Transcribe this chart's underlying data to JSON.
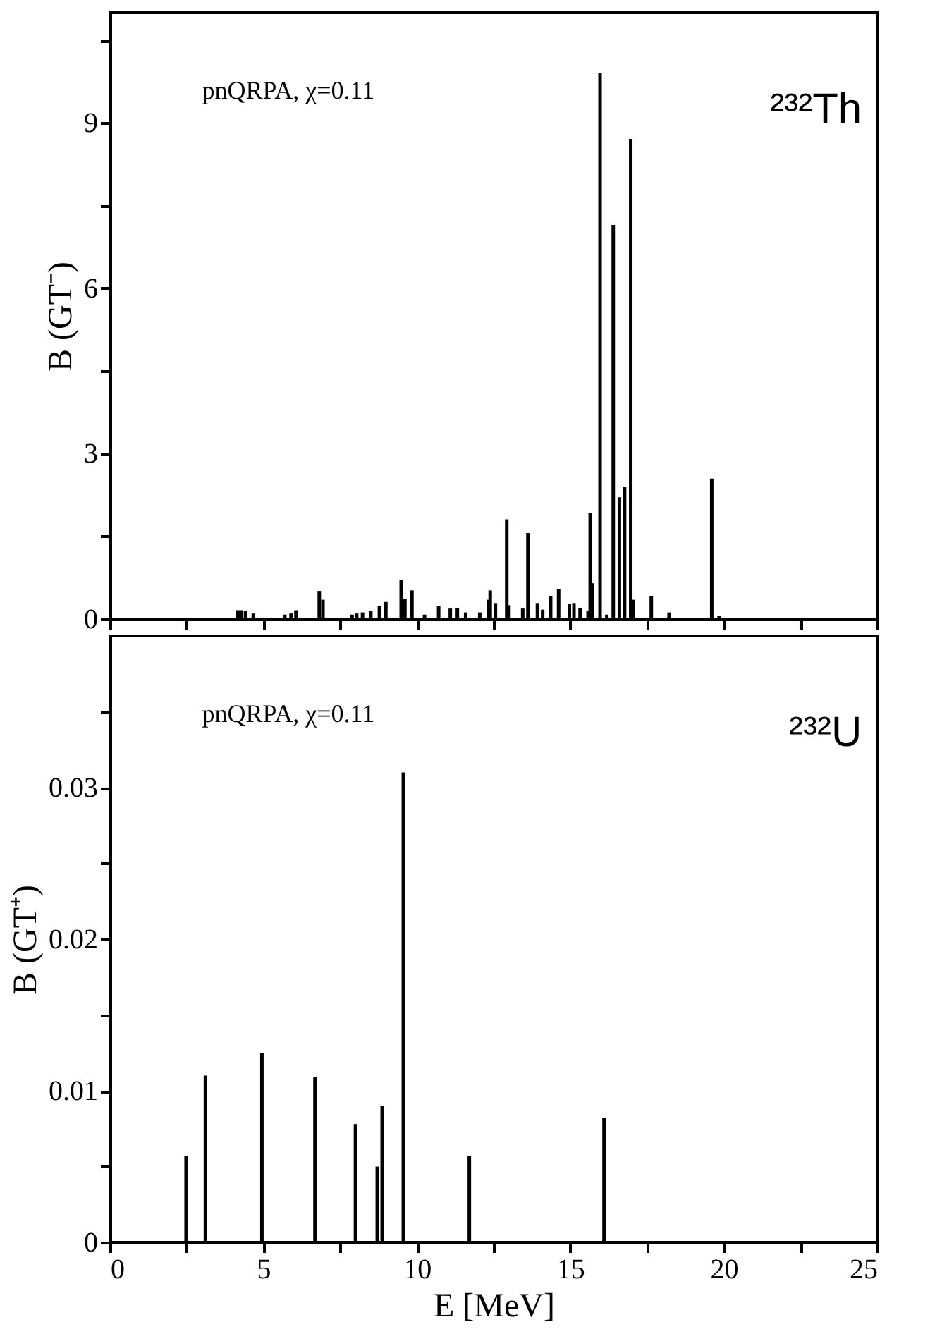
{
  "chart_data": [
    {
      "type": "bar",
      "ylabel": "B (GT⁻)",
      "annotations": [
        "pnQRPA, χ=0.11",
        "²³²Th"
      ],
      "tick_labels": "y",
      "xlim": [
        0,
        25
      ],
      "ylim": [
        0,
        11
      ],
      "xticks": [
        0,
        {
          "value": 2.5,
          "label": null
        },
        5,
        {
          "value": 7.5,
          "label": null
        },
        10,
        {
          "value": 12.5,
          "label": null
        },
        15,
        {
          "value": 17.5,
          "label": null
        },
        20,
        {
          "value": 22.5,
          "label": null
        },
        25
      ],
      "yticks": [
        0,
        {
          "value": 1.5,
          "label": null
        },
        3,
        {
          "value": 4.5,
          "label": null
        },
        6,
        {
          "value": 7.5,
          "label": null
        },
        9,
        {
          "value": 10.5,
          "label": null
        }
      ],
      "series": [
        {
          "color": "#000000",
          "x": [
            4.17,
            4.29,
            4.42,
            4.67,
            5.7,
            5.9,
            6.06,
            6.82,
            6.94,
            7.89,
            8.04,
            8.23,
            8.5,
            8.78,
            8.99,
            9.49,
            9.61,
            9.84,
            10.25,
            10.71,
            11.09,
            11.32,
            11.59,
            12.05,
            12.33,
            12.39,
            12.56,
            12.93,
            13.0,
            13.45,
            13.62,
            13.93,
            14.1,
            14.36,
            14.62,
            14.97,
            15.12,
            15.32,
            15.58,
            15.65,
            15.71,
            15.97,
            16.19,
            16.4,
            16.6,
            16.77,
            16.97,
            17.06,
            17.64,
            18.22,
            19.61,
            19.85
          ],
          "values": [
            0.16,
            0.16,
            0.15,
            0.1,
            0.08,
            0.1,
            0.16,
            0.51,
            0.35,
            0.08,
            0.1,
            0.12,
            0.14,
            0.23,
            0.31,
            0.71,
            0.37,
            0.52,
            0.08,
            0.23,
            0.19,
            0.2,
            0.12,
            0.12,
            0.35,
            0.52,
            0.29,
            1.81,
            0.25,
            0.19,
            1.56,
            0.29,
            0.17,
            0.41,
            0.54,
            0.27,
            0.29,
            0.2,
            0.14,
            1.92,
            0.65,
            9.91,
            0.08,
            7.15,
            2.21,
            2.4,
            8.71,
            0.35,
            0.42,
            0.12,
            2.55,
            0.06
          ]
        }
      ]
    },
    {
      "type": "bar",
      "xlabel": "E [MeV]",
      "ylabel": "B (GT⁺)",
      "annotations": [
        "pnQRPA, χ=0.11",
        "²³²U"
      ],
      "xlim": [
        0,
        25
      ],
      "ylim": [
        0,
        0.04
      ],
      "xticks": [
        0,
        {
          "value": 2.5,
          "label": null
        },
        5,
        {
          "value": 7.5,
          "label": null
        },
        10,
        {
          "value": 12.5,
          "label": null
        },
        15,
        {
          "value": 17.5,
          "label": null
        },
        20,
        {
          "value": 22.5,
          "label": null
        },
        25
      ],
      "yticks": [
        0,
        {
          "value": 0.005,
          "label": null
        },
        0.01,
        {
          "value": 0.015,
          "label": null
        },
        0.02,
        {
          "value": 0.025,
          "label": null
        },
        0.03,
        {
          "value": 0.035,
          "label": null
        }
      ],
      "series": [
        {
          "color": "#000000",
          "x": [
            2.48,
            3.11,
            4.95,
            6.68,
            8.0,
            8.71,
            8.87,
            9.56,
            11.71,
            16.1
          ],
          "values": [
            0.0057,
            0.011,
            0.0125,
            0.0109,
            0.0078,
            0.005,
            0.009,
            0.031,
            0.0057,
            0.0082
          ]
        }
      ]
    }
  ]
}
